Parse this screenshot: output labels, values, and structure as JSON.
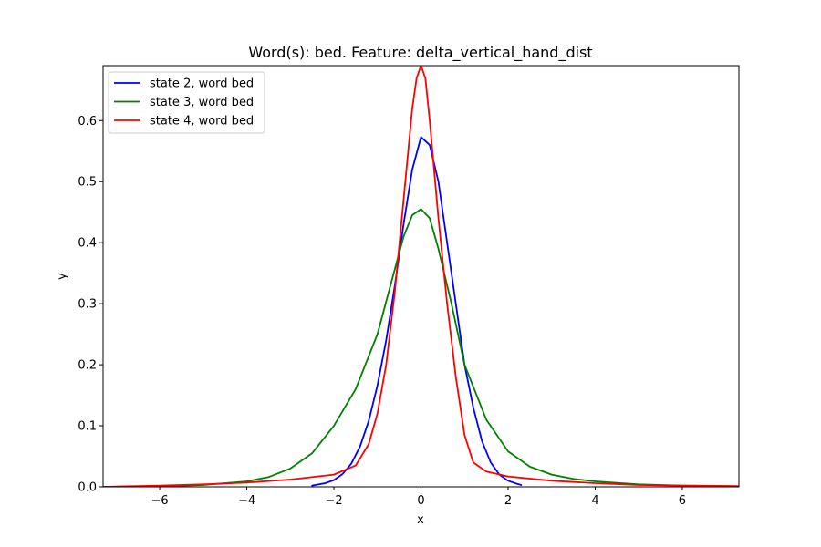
{
  "chart_data": {
    "type": "line",
    "title": "Word(s): bed. Feature: delta_vertical_hand_dist",
    "xlabel": "x",
    "ylabel": "y",
    "xlim": [
      -7.3,
      7.3
    ],
    "ylim": [
      0.0,
      0.69
    ],
    "xticks": [
      -6,
      -4,
      -2,
      0,
      2,
      4,
      6
    ],
    "xtick_labels": [
      "−6",
      "−4",
      "−2",
      "0",
      "2",
      "4",
      "6"
    ],
    "yticks": [
      0.0,
      0.1,
      0.2,
      0.3,
      0.4,
      0.5,
      0.6
    ],
    "ytick_labels": [
      "0.0",
      "0.1",
      "0.2",
      "0.3",
      "0.4",
      "0.5",
      "0.6"
    ],
    "grid": false,
    "legend_position": "top-left",
    "series": [
      {
        "name": "state 2, word bed",
        "color": "#0000ff",
        "x": [
          -2.5,
          -2.2,
          -2.0,
          -1.8,
          -1.6,
          -1.4,
          -1.2,
          -1.0,
          -0.8,
          -0.6,
          -0.4,
          -0.2,
          0.0,
          0.2,
          0.4,
          0.6,
          0.8,
          1.0,
          1.2,
          1.4,
          1.6,
          1.8,
          2.0,
          2.2,
          2.3
        ],
        "y": [
          0.002,
          0.006,
          0.011,
          0.021,
          0.038,
          0.066,
          0.108,
          0.166,
          0.24,
          0.33,
          0.43,
          0.52,
          0.573,
          0.56,
          0.5,
          0.4,
          0.3,
          0.2,
          0.13,
          0.075,
          0.04,
          0.02,
          0.01,
          0.005,
          0.003
        ]
      },
      {
        "name": "state 3, word bed",
        "color": "#008000",
        "x": [
          -7.3,
          -6.0,
          -5.0,
          -4.0,
          -3.5,
          -3.0,
          -2.5,
          -2.0,
          -1.5,
          -1.0,
          -0.7,
          -0.4,
          -0.2,
          0.0,
          0.2,
          0.4,
          0.7,
          1.0,
          1.5,
          2.0,
          2.5,
          3.0,
          3.5,
          4.0,
          5.0,
          6.0,
          7.3
        ],
        "y": [
          0.0,
          0.001,
          0.003,
          0.009,
          0.016,
          0.03,
          0.055,
          0.1,
          0.16,
          0.25,
          0.33,
          0.41,
          0.445,
          0.455,
          0.44,
          0.39,
          0.3,
          0.2,
          0.11,
          0.058,
          0.033,
          0.02,
          0.013,
          0.009,
          0.004,
          0.002,
          0.001
        ]
      },
      {
        "name": "state 4, word bed",
        "color": "#ff0000",
        "x": [
          -7.3,
          -6.0,
          -5.0,
          -4.0,
          -3.0,
          -2.0,
          -1.5,
          -1.2,
          -1.0,
          -0.8,
          -0.6,
          -0.4,
          -0.2,
          -0.1,
          0.0,
          0.1,
          0.2,
          0.4,
          0.6,
          0.8,
          1.0,
          1.2,
          1.5,
          2.0,
          3.0,
          4.0,
          5.0,
          6.0,
          7.3
        ],
        "y": [
          0.0,
          0.002,
          0.004,
          0.007,
          0.012,
          0.02,
          0.035,
          0.07,
          0.12,
          0.2,
          0.32,
          0.47,
          0.62,
          0.67,
          0.69,
          0.67,
          0.6,
          0.44,
          0.3,
          0.18,
          0.085,
          0.04,
          0.025,
          0.017,
          0.01,
          0.006,
          0.003,
          0.002,
          0.001
        ]
      }
    ]
  }
}
